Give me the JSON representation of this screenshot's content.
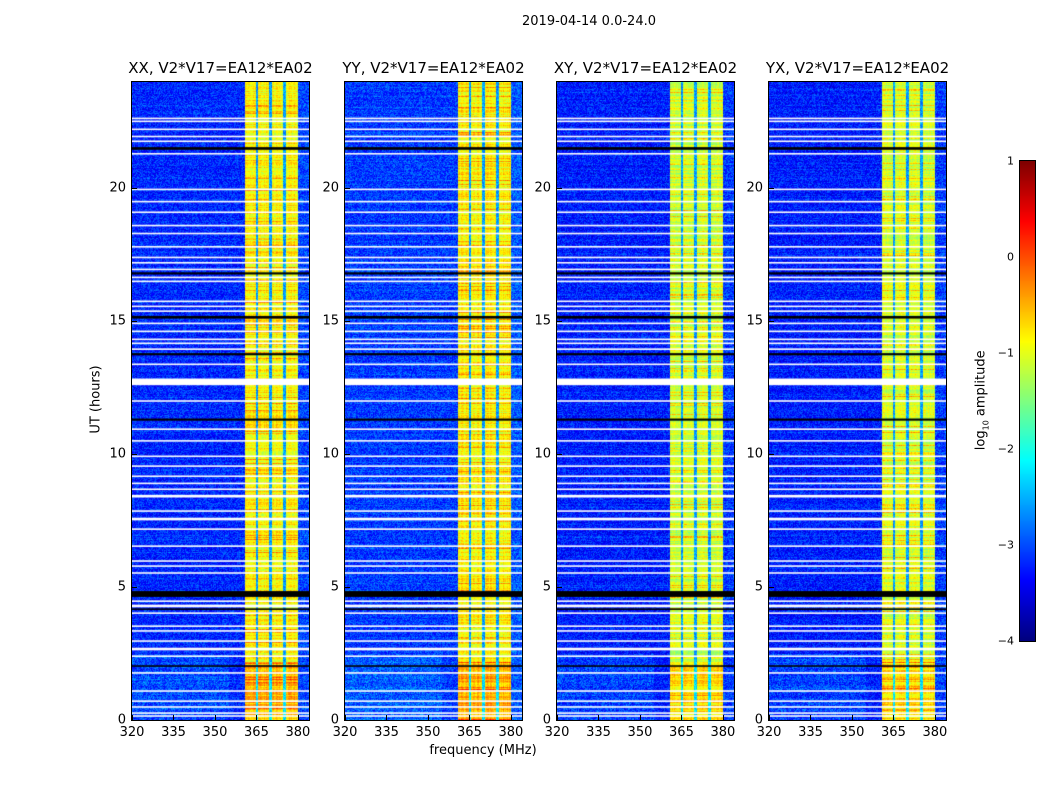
{
  "suptitle": "2019-04-14 0.0-24.0",
  "chart_data": {
    "type": "heatmap",
    "title": "2019-04-14 0.0-24.0",
    "xlabel": "frequency (MHz)",
    "ylabel": "UT (hours)",
    "xlim": [
      320,
      384
    ],
    "ylim": [
      0,
      24
    ],
    "xticks": [
      "320",
      "335",
      "350",
      "365",
      "380"
    ],
    "xtick_values": [
      320,
      335,
      350,
      365,
      380
    ],
    "yticks": [
      "0",
      "5",
      "10",
      "15",
      "20"
    ],
    "ytick_values": [
      0,
      5,
      10,
      15,
      20
    ],
    "colormap": "jet",
    "colorbar": {
      "label_prefix": "log",
      "label_sub": "10",
      "label_suffix": " amplitude",
      "range": [
        -4,
        1
      ],
      "ticks": [
        "1",
        "0",
        "−1",
        "−2",
        "−3",
        "−4"
      ],
      "tick_values": [
        1,
        0,
        -1,
        -2,
        -3,
        -4
      ]
    },
    "panels": [
      {
        "title": "XX, V2*V17=EA12*EA02",
        "band_level": -0.9,
        "bg_level": -3.2
      },
      {
        "title": "YY, V2*V17=EA12*EA02",
        "band_level": -0.85,
        "bg_level": -3.1
      },
      {
        "title": "XY, V2*V17=EA12*EA02",
        "band_level": -1.1,
        "bg_level": -3.25
      },
      {
        "title": "YX, V2*V17=EA12*EA02",
        "band_level": -1.1,
        "bg_level": -3.25
      }
    ],
    "band_mhz": [
      360.5,
      380
    ],
    "band_gap_mhz": [
      365,
      370,
      375
    ],
    "flagged_rows": [
      {
        "t": 22.63,
        "w": 0.06,
        "c": "white"
      },
      {
        "t": 22.52,
        "w": 0.06,
        "c": "white"
      },
      {
        "t": 22.22,
        "w": 0.06,
        "c": "white"
      },
      {
        "t": 21.95,
        "w": 0.06,
        "c": "white"
      },
      {
        "t": 21.77,
        "w": 0.06,
        "c": "white"
      },
      {
        "t": 21.5,
        "w": 0.1,
        "c": "black"
      },
      {
        "t": 21.3,
        "w": 0.06,
        "c": "white"
      },
      {
        "t": 19.96,
        "w": 0.06,
        "c": "white"
      },
      {
        "t": 19.5,
        "w": 0.06,
        "c": "white"
      },
      {
        "t": 19.1,
        "w": 0.06,
        "c": "white"
      },
      {
        "t": 18.6,
        "w": 0.06,
        "c": "white"
      },
      {
        "t": 18.3,
        "w": 0.06,
        "c": "white"
      },
      {
        "t": 17.8,
        "w": 0.06,
        "c": "white"
      },
      {
        "t": 17.4,
        "w": 0.06,
        "c": "white"
      },
      {
        "t": 17.2,
        "w": 0.06,
        "c": "white"
      },
      {
        "t": 16.95,
        "w": 0.06,
        "c": "white"
      },
      {
        "t": 16.8,
        "w": 0.08,
        "c": "black"
      },
      {
        "t": 16.65,
        "w": 0.06,
        "c": "white"
      },
      {
        "t": 16.5,
        "w": 0.06,
        "c": "white"
      },
      {
        "t": 15.75,
        "w": 0.06,
        "c": "white"
      },
      {
        "t": 15.56,
        "w": 0.06,
        "c": "white"
      },
      {
        "t": 15.38,
        "w": 0.06,
        "c": "white"
      },
      {
        "t": 15.15,
        "w": 0.1,
        "c": "black"
      },
      {
        "t": 14.92,
        "w": 0.06,
        "c": "white"
      },
      {
        "t": 14.62,
        "w": 0.06,
        "c": "white"
      },
      {
        "t": 14.32,
        "w": 0.06,
        "c": "white"
      },
      {
        "t": 14.17,
        "w": 0.06,
        "c": "white"
      },
      {
        "t": 13.95,
        "w": 0.06,
        "c": "white"
      },
      {
        "t": 13.76,
        "w": 0.08,
        "c": "black"
      },
      {
        "t": 13.38,
        "w": 0.06,
        "c": "white"
      },
      {
        "t": 12.72,
        "w": 0.25,
        "c": "white"
      },
      {
        "t": 12.0,
        "w": 0.06,
        "c": "white"
      },
      {
        "t": 11.3,
        "w": 0.08,
        "c": "black"
      },
      {
        "t": 10.94,
        "w": 0.06,
        "c": "white"
      },
      {
        "t": 10.5,
        "w": 0.06,
        "c": "white"
      },
      {
        "t": 9.92,
        "w": 0.06,
        "c": "white"
      },
      {
        "t": 9.55,
        "w": 0.06,
        "c": "white"
      },
      {
        "t": 9.17,
        "w": 0.06,
        "c": "white"
      },
      {
        "t": 8.9,
        "w": 0.06,
        "c": "white"
      },
      {
        "t": 8.68,
        "w": 0.06,
        "c": "white"
      },
      {
        "t": 8.42,
        "w": 0.1,
        "c": "white"
      },
      {
        "t": 7.86,
        "w": 0.06,
        "c": "white"
      },
      {
        "t": 7.56,
        "w": 0.1,
        "c": "white"
      },
      {
        "t": 7.18,
        "w": 0.06,
        "c": "white"
      },
      {
        "t": 6.54,
        "w": 0.06,
        "c": "white"
      },
      {
        "t": 5.98,
        "w": 0.06,
        "c": "white"
      },
      {
        "t": 5.79,
        "w": 0.06,
        "c": "white"
      },
      {
        "t": 5.53,
        "w": 0.06,
        "c": "white"
      },
      {
        "t": 4.74,
        "w": 0.22,
        "c": "black"
      },
      {
        "t": 4.47,
        "w": 0.06,
        "c": "white"
      },
      {
        "t": 4.29,
        "w": 0.1,
        "c": "white"
      },
      {
        "t": 4.17,
        "w": 0.06,
        "c": "black"
      },
      {
        "t": 4.02,
        "w": 0.06,
        "c": "white"
      },
      {
        "t": 3.53,
        "w": 0.06,
        "c": "white"
      },
      {
        "t": 3.35,
        "w": 0.06,
        "c": "white"
      },
      {
        "t": 2.97,
        "w": 0.06,
        "c": "white"
      },
      {
        "t": 2.67,
        "w": 0.1,
        "c": "white"
      },
      {
        "t": 2.4,
        "w": 0.06,
        "c": "white"
      },
      {
        "t": 2.03,
        "w": 0.06,
        "c": "black"
      },
      {
        "t": 1.77,
        "w": 0.06,
        "c": "white"
      },
      {
        "t": 1.09,
        "w": 0.06,
        "c": "white"
      },
      {
        "t": 0.71,
        "w": 0.06,
        "c": "white"
      },
      {
        "t": 0.49,
        "w": 0.06,
        "c": "white"
      },
      {
        "t": 0.26,
        "w": 0.06,
        "c": "white"
      },
      {
        "t": 0.15,
        "w": 0.06,
        "c": "white"
      }
    ]
  }
}
